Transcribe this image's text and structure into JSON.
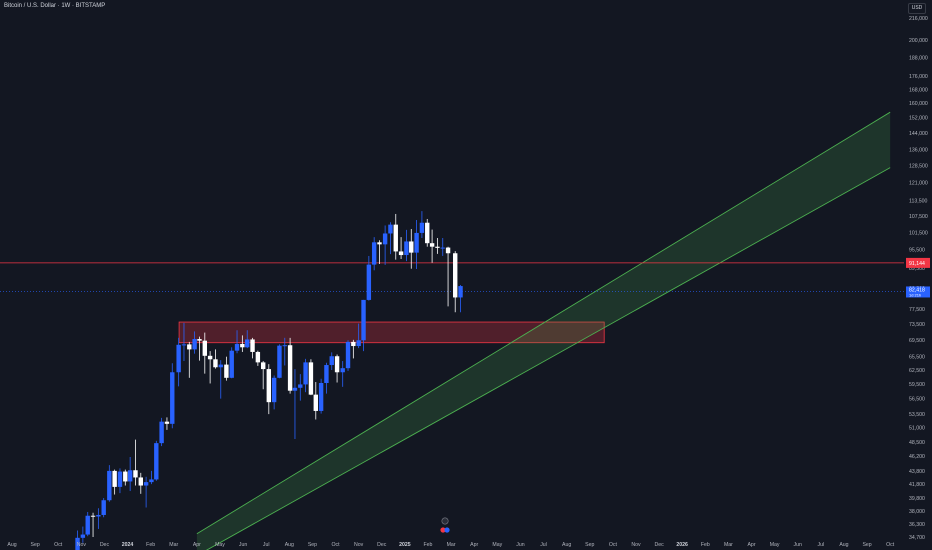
{
  "header": {
    "symbol_title": "Bitcoin / U.S. Dollar · 1W · BITSTAMP",
    "currency": "USD"
  },
  "colors": {
    "background": "#131722",
    "bull": "#2962ff",
    "bear": "#ffffff",
    "resistance_line": "#f23645",
    "demand_zone": "#f23645",
    "channel": "#4caf50",
    "axis_text": "#b2b5be",
    "price_line": "#2962ff"
  },
  "chart_data": {
    "type": "candlestick",
    "x_axis_labels": [
      "Aug",
      "Sep",
      "Oct",
      "Nov",
      "Dec",
      "2024",
      "Feb",
      "Mar",
      "Apr",
      "May",
      "Jun",
      "Jul",
      "Aug",
      "Sep",
      "Oct",
      "Nov",
      "Dec",
      "2025",
      "Feb",
      "Mar",
      "Apr",
      "May",
      "Jun",
      "Jul",
      "Aug",
      "Sep",
      "Oct",
      "Nov",
      "Dec",
      "2026",
      "Feb",
      "Mar",
      "Apr",
      "May",
      "Jun",
      "Jul",
      "Aug",
      "Sep",
      "Oct"
    ],
    "y_axis_labels": [
      216000,
      200000,
      188000,
      176000,
      168000,
      160000,
      152000,
      144000,
      136000,
      128500,
      121000,
      113500,
      107500,
      101500,
      95500,
      89500,
      83500,
      77500,
      73500,
      69500,
      65500,
      62500,
      59500,
      56500,
      53500,
      51000,
      48500,
      46200,
      43800,
      41800,
      39800,
      38000,
      36300,
      34700
    ],
    "y_scale": "log",
    "price_labels": {
      "resistance": "91,144",
      "current": "82,418",
      "countdown": "1d 21h"
    },
    "resistance_price": 91144,
    "current_price": 82418,
    "demand_zone": {
      "top": 74000,
      "bottom": 68800,
      "from": "2024-03",
      "to": "2025-09"
    },
    "channel": {
      "lower": {
        "start": [
          "2024-04",
          32500
        ],
        "end": [
          "2026-10",
          127500
        ]
      },
      "upper": {
        "start": [
          "2024-04",
          35100
        ],
        "end": [
          "2026-10",
          155000
        ]
      }
    },
    "candles": [
      [
        "2023-10-23",
        33000,
        35500,
        32800,
        34600
      ],
      [
        "2023-10-30",
        34600,
        36000,
        34000,
        35000
      ],
      [
        "2023-11-06",
        35000,
        37900,
        34800,
        37400
      ],
      [
        "2023-11-13",
        37400,
        37800,
        34700,
        37300
      ],
      [
        "2023-11-20",
        37300,
        38400,
        35700,
        37500
      ],
      [
        "2023-11-27",
        37500,
        39800,
        37200,
        39500
      ],
      [
        "2023-12-04",
        39500,
        44700,
        39300,
        43800
      ],
      [
        "2023-12-11",
        43800,
        44000,
        40300,
        41400
      ],
      [
        "2023-12-18",
        41400,
        44200,
        40500,
        43700
      ],
      [
        "2023-12-25",
        43700,
        44000,
        41600,
        42200
      ],
      [
        "2024-01-01",
        42200,
        46000,
        40800,
        43900
      ],
      [
        "2024-01-08",
        43900,
        48900,
        41600,
        42800
      ],
      [
        "2024-01-15",
        42800,
        43500,
        40400,
        41600
      ],
      [
        "2024-01-22",
        41600,
        42900,
        38500,
        42100
      ],
      [
        "2024-01-29",
        42100,
        43800,
        41800,
        42500
      ],
      [
        "2024-02-05",
        42500,
        48700,
        42300,
        48300
      ],
      [
        "2024-02-12",
        48300,
        52800,
        47800,
        52100
      ],
      [
        "2024-02-19",
        52100,
        52900,
        50600,
        51700
      ],
      [
        "2024-02-26",
        51700,
        64000,
        50900,
        62000
      ],
      [
        "2024-03-04",
        62000,
        70000,
        59000,
        68300
      ],
      [
        "2024-03-11",
        68300,
        73800,
        64500,
        68400
      ],
      [
        "2024-03-18",
        68400,
        69000,
        60800,
        67200
      ],
      [
        "2024-03-25",
        67200,
        71600,
        66200,
        69700
      ],
      [
        "2024-04-01",
        69700,
        70300,
        64600,
        69300
      ],
      [
        "2024-04-08",
        69300,
        71300,
        61700,
        65700
      ],
      [
        "2024-04-15",
        65700,
        66800,
        59600,
        64900
      ],
      [
        "2024-04-22",
        64900,
        67200,
        62800,
        63100
      ],
      [
        "2024-04-29",
        63100,
        64700,
        56500,
        63700
      ],
      [
        "2024-05-06",
        63700,
        65500,
        60200,
        60800
      ],
      [
        "2024-05-13",
        60800,
        67700,
        60700,
        66900
      ],
      [
        "2024-05-20",
        66900,
        71900,
        66300,
        68500
      ],
      [
        "2024-05-27",
        68500,
        70600,
        66600,
        67700
      ],
      [
        "2024-06-03",
        67700,
        71900,
        67500,
        69600
      ],
      [
        "2024-06-10",
        69600,
        70000,
        65100,
        66600
      ],
      [
        "2024-06-17",
        66600,
        66900,
        63400,
        64200
      ],
      [
        "2024-06-24",
        64200,
        64500,
        58400,
        62700
      ],
      [
        "2024-07-01",
        62700,
        63800,
        53500,
        55800
      ],
      [
        "2024-07-08",
        55800,
        61300,
        54400,
        60800
      ],
      [
        "2024-07-15",
        60800,
        68400,
        60700,
        68100
      ],
      [
        "2024-07-22",
        68100,
        70000,
        63500,
        68200
      ],
      [
        "2024-07-29",
        68200,
        70000,
        57500,
        58100
      ],
      [
        "2024-08-05",
        58100,
        62700,
        49000,
        58700
      ],
      [
        "2024-08-12",
        58700,
        61600,
        56100,
        59400
      ],
      [
        "2024-08-19",
        59400,
        65000,
        57800,
        64200
      ],
      [
        "2024-08-26",
        64200,
        64900,
        57200,
        57300
      ],
      [
        "2024-09-02",
        57300,
        59900,
        52500,
        54100
      ],
      [
        "2024-09-09",
        54100,
        60600,
        53600,
        59700
      ],
      [
        "2024-09-16",
        59700,
        64100,
        57500,
        63600
      ],
      [
        "2024-09-23",
        63600,
        66500,
        62500,
        65600
      ],
      [
        "2024-09-30",
        65600,
        66000,
        59800,
        62000
      ],
      [
        "2024-10-07",
        62000,
        64500,
        58900,
        62900
      ],
      [
        "2024-10-14",
        62900,
        69400,
        62300,
        69000
      ],
      [
        "2024-10-21",
        69000,
        69500,
        65100,
        68000
      ],
      [
        "2024-10-28",
        68000,
        73600,
        67500,
        69400
      ],
      [
        "2024-11-04",
        69400,
        80000,
        66800,
        80000
      ],
      [
        "2024-11-11",
        80000,
        93400,
        79800,
        90600
      ],
      [
        "2024-11-18",
        90600,
        99800,
        88800,
        98000
      ],
      [
        "2024-11-25",
        98000,
        98700,
        90800,
        97300
      ],
      [
        "2024-12-02",
        97300,
        104000,
        90500,
        101100
      ],
      [
        "2024-12-09",
        101100,
        105200,
        94000,
        104300
      ],
      [
        "2024-12-16",
        104300,
        108300,
        92200,
        94900
      ],
      [
        "2024-12-23",
        94900,
        99800,
        92400,
        93700
      ],
      [
        "2024-12-30",
        93700,
        102400,
        91700,
        98300
      ],
      [
        "2025-01-06",
        98300,
        102700,
        89300,
        94500
      ],
      [
        "2025-01-13",
        94500,
        106000,
        89200,
        101300
      ],
      [
        "2025-01-20",
        101300,
        109400,
        99500,
        105000
      ],
      [
        "2025-01-27",
        105000,
        106400,
        96500,
        97700
      ],
      [
        "2025-02-03",
        97700,
        102500,
        91200,
        96500
      ],
      [
        "2025-02-10",
        96500,
        99500,
        94100,
        96100
      ],
      [
        "2025-02-17",
        96100,
        99500,
        93400,
        96200
      ],
      [
        "2025-02-24",
        96200,
        96500,
        78200,
        94300
      ],
      [
        "2025-03-03",
        94300,
        95000,
        76600,
        80700
      ],
      [
        "2025-03-10",
        80700,
        84300,
        76600,
        84000
      ]
    ]
  }
}
